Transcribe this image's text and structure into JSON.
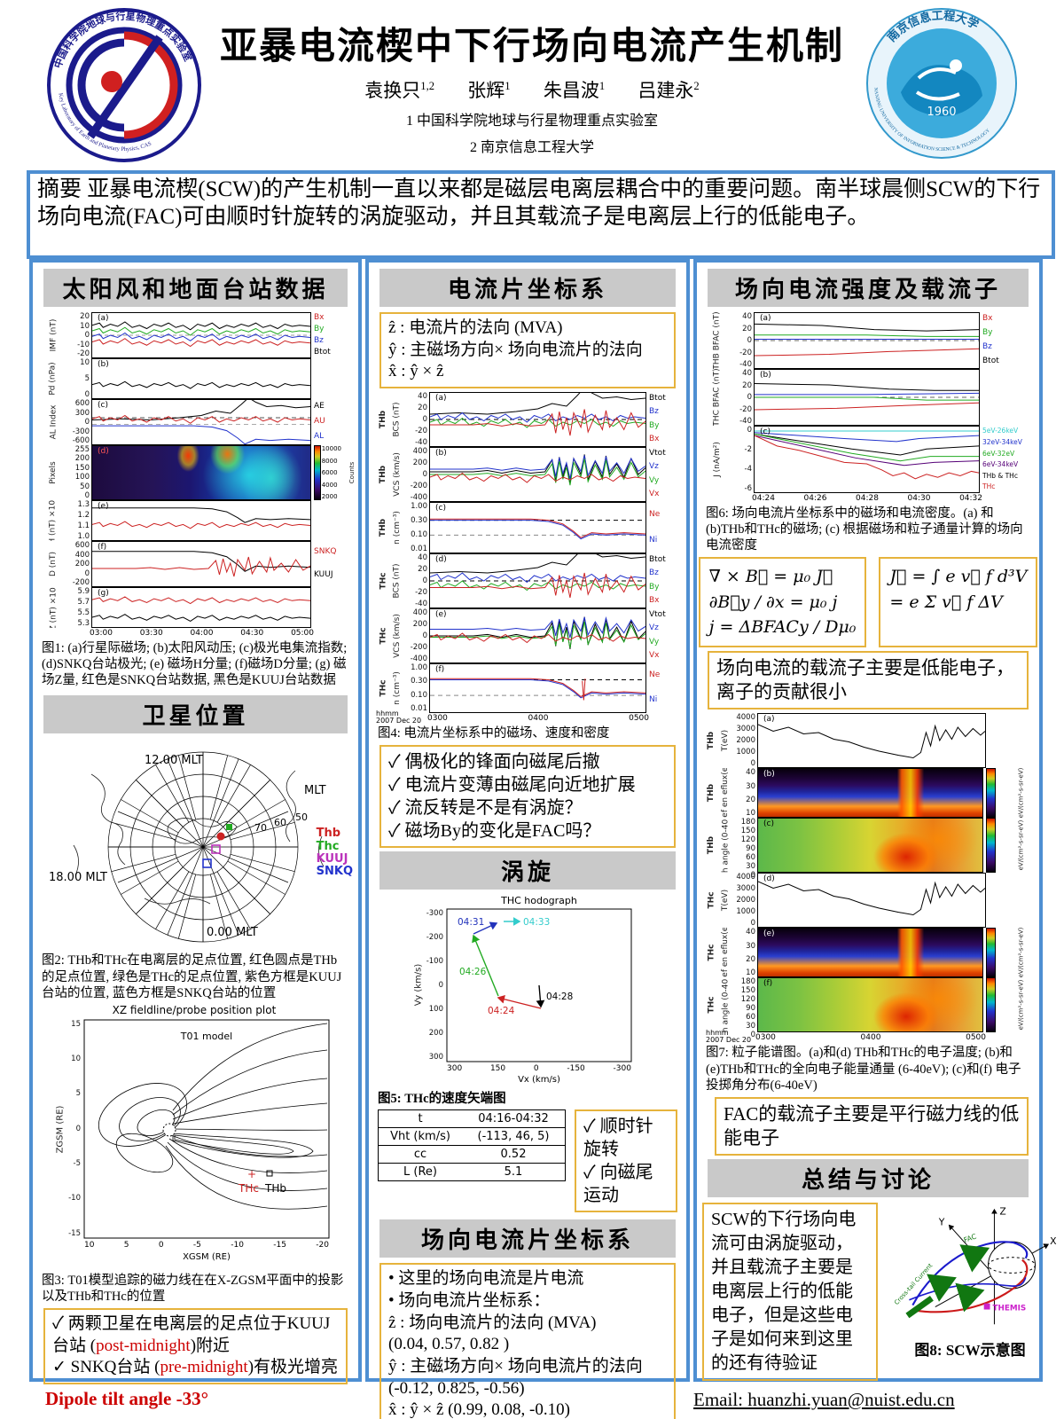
{
  "colors": {
    "accent_blue": "#4e8fd2",
    "header_gray": "#c9c9c9",
    "box_yellow": "#e6b33c",
    "highlight_red": "#cc0000"
  },
  "header": {
    "title": "亚暴电流楔中下行场向电流产生机制",
    "authors": [
      {
        "name": "袁换只",
        "sup": "1,2"
      },
      {
        "name": "张辉",
        "sup": "1"
      },
      {
        "name": "朱昌波",
        "sup": "1"
      },
      {
        "name": "吕建永",
        "sup": "2"
      }
    ],
    "affil1": "1 中国科学院地球与行星物理重点实验室",
    "affil2": "2 南京信息工程大学",
    "logo_left_top": "中国科学院地球与行星物理重点实验室",
    "logo_left_bottom": "Key Laboratory of Earth and Planetary Physics, CAS",
    "logo_right_top": "南京信息工程大学",
    "logo_right_year": "1960",
    "logo_right_bottom": "NANJING UNIVERSITY OF INFORMATION SCIENCE & TECHNOLOGY"
  },
  "abstract": {
    "text": "摘要 亚暴电流楔(SCW)的产生机制一直以来都是磁层电离层耦合中的重要问题。南半球晨侧SCW的下行场向电流(FAC)可由顺时针旋转的涡旋驱动，并且其载流子是电离层上行的低能电子。"
  },
  "left": {
    "sec1": "太阳风和地面台站数据",
    "fig1": {
      "panels": [
        {
          "tag": "(a)",
          "ylabel": "IMF (nT)",
          "yticks": [
            "20",
            "10",
            "0",
            "-10",
            "-20"
          ],
          "legend": [
            {
              "label": "Bx",
              "color": "#cc2222"
            },
            {
              "label": "By",
              "color": "#22aa22"
            },
            {
              "label": "Bz",
              "color": "#2233cc"
            },
            {
              "label": "Btot",
              "color": "#000000"
            }
          ]
        },
        {
          "tag": "(b)",
          "ylabel": "Pd (nPa)",
          "yticks": [
            "10",
            "5",
            "0"
          ],
          "legend": []
        },
        {
          "tag": "(c)",
          "ylabel": "AL Index",
          "yticks": [
            "600",
            "300",
            "0",
            "-300",
            "-600"
          ],
          "legend": [
            {
              "label": "AE",
              "color": "#000000"
            },
            {
              "label": "AU",
              "color": "#cc2222"
            },
            {
              "label": "AL",
              "color": "#2233cc"
            }
          ]
        },
        {
          "tag": "(d)",
          "ylabel": "Pixels",
          "yticks": [
            "255",
            "200",
            "150",
            "100",
            "50",
            "0"
          ],
          "colorbar_ticks": [
            "10000",
            "8000",
            "6000",
            "4000",
            "2000"
          ],
          "colorbar_label": "Counts"
        },
        {
          "tag": "(e)",
          "ylabel": "H (nT) ×10⁴",
          "yticks": [
            "1.3",
            "1.2",
            "1.1",
            "1.0"
          ],
          "legend": []
        },
        {
          "tag": "(f)",
          "ylabel": "D (nT)",
          "yticks": [
            "600",
            "400",
            "200",
            "0",
            "-200"
          ],
          "legend": [
            {
              "label": "SNKQ",
              "color": "#cc2222"
            },
            {
              "label": "KUUJ",
              "color": "#000000"
            }
          ]
        },
        {
          "tag": "(g)",
          "ylabel": "Z (nT) ×10⁴",
          "yticks": [
            "5.9",
            "5.7",
            "5.5",
            "5.3"
          ],
          "legend": []
        }
      ],
      "xticks": [
        "03:00",
        "03:30",
        "04:00",
        "04:30",
        "05:00"
      ],
      "caption": "图1: (a)行星际磁场; (b)太阳风动压; (c)极光电集流指数; (d)SNKQ台站极光; (e) 磁场H分量; (f)磁场D分量; (g) 磁场Z量, 红色是SNKQ台站数据, 黑色是KUUJ台站数据"
    },
    "sec2": "卫星位置",
    "map": {
      "top": "12.00 MLT",
      "right": "MLT",
      "left": "18.00 MLT",
      "bottom": "0.00 MLT",
      "lat": [
        "70",
        "60",
        "50"
      ],
      "legend": [
        {
          "label": "Thb",
          "color": "#cc2222"
        },
        {
          "label": "Thc",
          "color": "#22aa22"
        },
        {
          "label": "KUUJ",
          "color": "#bb33bb"
        },
        {
          "label": "SNKQ",
          "color": "#2233cc"
        }
      ]
    },
    "fig2_caption": "图2: THb和THc在电离层的足点位置, 红色圆点是THb的足点位置, 绿色是THc的足点位置, 紫色方框是KUUJ台站的位置, 蓝色方框是SNKQ台站的位置",
    "fig3": {
      "title": "XZ fieldline/probe position plot",
      "model": "T01 model",
      "ylabel": "ZGSM (RE)",
      "xlabel": "XGSM (RE)",
      "yticks": [
        "15",
        "10",
        "5",
        "0",
        "-5",
        "-10",
        "-15"
      ],
      "xticks": [
        "10",
        "5",
        "0",
        "-5",
        "-10",
        "-15",
        "-20"
      ],
      "thc": "THc",
      "thb": "THb"
    },
    "fig3_caption": "图3: T01模型追踪的磁力线在在X-ZGSM平面中的投影以及THb和THc的位置",
    "findings": [
      {
        "pre": "✓ 两颗卫星在电离层的足点位于KUUJ台站 (",
        "red": "post-midnight",
        "post": ")附近"
      },
      {
        "pre": "✓ SNKQ台站 (",
        "red": "pre-midnight",
        "post": ")有极光增亮"
      }
    ],
    "dipole": "Dipole tilt angle  -33°"
  },
  "middle": {
    "sec1": "电流片坐标系",
    "cs_lines": [
      "ẑ : 电流片的法向 (MVA)",
      "ŷ : 主磁场方向× 场向电流片的法向",
      "x̂ : ŷ × ẑ"
    ],
    "fig4": {
      "panels": [
        {
          "tag": "(a)",
          "sc": "THb",
          "ylabel": "BCS (nT)",
          "yticks": [
            "40",
            "20",
            "0",
            "-20",
            "-40"
          ],
          "legend": [
            {
              "label": "Btot",
              "color": "#000000"
            },
            {
              "label": "Bz",
              "color": "#2233cc"
            },
            {
              "label": "By",
              "color": "#22aa22"
            },
            {
              "label": "Bx",
              "color": "#cc2222"
            }
          ]
        },
        {
          "tag": "(b)",
          "sc": "THb",
          "ylabel": "VCS (km/s)",
          "yticks": [
            "400",
            "200",
            "0",
            "-200",
            "-400"
          ],
          "legend": [
            {
              "label": "Vtot",
              "color": "#000000"
            },
            {
              "label": "Vz",
              "color": "#2233cc"
            },
            {
              "label": "Vy",
              "color": "#22aa22"
            },
            {
              "label": "Vx",
              "color": "#cc2222"
            }
          ]
        },
        {
          "tag": "(c)",
          "sc": "THb",
          "ylabel": "n (cm⁻³)",
          "yticks": [
            "1.00",
            "0.30",
            "0.10",
            "0.01"
          ],
          "legend": [
            {
              "label": "Ne",
              "color": "#cc2222"
            },
            {
              "label": "Ni",
              "color": "#2233cc"
            }
          ]
        },
        {
          "tag": "(d)",
          "sc": "THc",
          "ylabel": "BCS (nT)",
          "yticks": [
            "40",
            "20",
            "0",
            "-20",
            "-40"
          ],
          "legend": [
            {
              "label": "Btot",
              "color": "#000000"
            },
            {
              "label": "Bz",
              "color": "#2233cc"
            },
            {
              "label": "By",
              "color": "#22aa22"
            },
            {
              "label": "Bx",
              "color": "#cc2222"
            }
          ]
        },
        {
          "tag": "(e)",
          "sc": "THc",
          "ylabel": "VCS (km/s)",
          "yticks": [
            "400",
            "200",
            "0",
            "-200",
            "-400"
          ],
          "legend": [
            {
              "label": "Vtot",
              "color": "#000000"
            },
            {
              "label": "Vz",
              "color": "#2233cc"
            },
            {
              "label": "Vy",
              "color": "#22aa22"
            },
            {
              "label": "Vx",
              "color": "#cc2222"
            }
          ]
        },
        {
          "tag": "(f)",
          "sc": "THc",
          "ylabel": "n (cm⁻³)",
          "yticks": [
            "1.00",
            "0.30",
            "0.10",
            "0.01"
          ],
          "legend": [
            {
              "label": "Ne",
              "color": "#cc2222"
            },
            {
              "label": "Ni",
              "color": "#2233cc"
            }
          ]
        }
      ],
      "xticks": [
        "0300",
        "0400",
        "0500"
      ],
      "corner1": "hhmm",
      "corner2": "2007 Dec 20",
      "caption": "图4: 电流片坐标系中的磁场、速度和密度"
    },
    "points": [
      "✓ 偶极化的锋面向磁尾后撤",
      "✓ 电流片变薄由磁尾向近地扩展",
      "✓ 流反转是不是有涡旋？",
      "✓ 磁场By的变化是FAC吗？"
    ],
    "sec2": "涡旋",
    "fig5": {
      "title": "THC hodograph",
      "ylabel": "Vy (km/s)",
      "xlabel": "Vx (km/s)",
      "yticks": [
        "-300",
        "-200",
        "-100",
        "0",
        "100",
        "200",
        "300"
      ],
      "xticks": [
        "300",
        "150",
        "0",
        "-150",
        "-300"
      ],
      "t0431": "04:31",
      "t0433": "04:33",
      "t0426": "04:26",
      "t0424": "04:24",
      "t0428": "04:28"
    },
    "fig5_caption": "图5: THc的速度矢端图",
    "table": [
      [
        "t",
        "04:16-04:32"
      ],
      [
        "Vht (km/s)",
        "(-113, 46, 5)"
      ],
      [
        "cc",
        "0.52"
      ],
      [
        "L (Re)",
        "5.1"
      ]
    ],
    "points2": [
      "✓ 顺时针旋转",
      "✓ 向磁尾运动"
    ],
    "sec3": "场向电流片坐标系",
    "fac_lines": [
      "• 这里的场向电流是片电流",
      "• 场向电流片坐标系：",
      "ẑ : 场向电流片的法向 (MVA)",
      "(0.04, 0.57, 0.82 )",
      "ŷ : 主磁场方向× 场向电流片的法向",
      "(-0.12, 0.825,  -0.56)",
      "x̂ : ŷ × ẑ  (0.99, 0.08, -0.10)"
    ]
  },
  "right": {
    "sec1": "场向电流强度及载流子",
    "fig6": {
      "panels": [
        {
          "tag": "(a)",
          "ylabel": "THB BFAC (nT)",
          "yticks": [
            "40",
            "20",
            "0",
            "-20",
            "-40"
          ],
          "legend": [
            {
              "label": "Bx",
              "color": "#cc2222"
            },
            {
              "label": "By",
              "color": "#22aa22"
            },
            {
              "label": "Bz",
              "color": "#2233cc"
            },
            {
              "label": "Btot",
              "color": "#000000"
            }
          ]
        },
        {
          "tag": "(b)",
          "ylabel": "THC BFAC (nT)",
          "yticks": [
            "40",
            "20",
            "0",
            "-20",
            "-40"
          ],
          "legend": []
        },
        {
          "tag": "(c)",
          "ylabel": "J (nA/m²)",
          "yticks": [
            "0",
            "-2",
            "-4",
            "-6"
          ],
          "legend": [
            {
              "label": "5eV-26keV",
              "color": "#33cccc"
            },
            {
              "label": "32eV-34keV",
              "color": "#2233cc"
            },
            {
              "label": "6eV-32eV",
              "color": "#22aa22"
            },
            {
              "label": "6eV-34keV",
              "color": "#550077"
            },
            {
              "label": "THb & THc",
              "color": "#000000"
            },
            {
              "label": "THc",
              "color": "#cc2222"
            }
          ]
        }
      ],
      "xticks": [
        "04:24",
        "04:26",
        "04:28",
        "04:30",
        "04:32"
      ],
      "caption": "图6: 场向电流片坐标系中的磁场和电流密度。(a) 和(b)THb和THc的磁场; (c) 根据磁场和粒子通量计算的场向电流密度"
    },
    "formula1": [
      "∇ × B⃗ = μ₀ J⃗",
      "∂B⃗y / ∂x = μ₀ j",
      "j = ΔBFACy / Dμ₀"
    ],
    "formula2": [
      "J⃗ = ∫ e v⃗ f d³V",
      "= e Σ v⃗ f ΔV"
    ],
    "note1": "场向电流的载流子主要是低能电子，离子的贡献很小",
    "fig7": {
      "rows": [
        {
          "tag": "(a)",
          "sc": "THb",
          "ylabel": "T(eV)",
          "yticks": [
            "4000",
            "3000",
            "2000",
            "1000",
            "0"
          ],
          "kind": "line"
        },
        {
          "tag": "(b)",
          "sc": "THb",
          "ylabel": "peef en eflux(eV)",
          "yticks": [
            "40",
            "30",
            "20",
            "10"
          ],
          "kind": "spec-e"
        },
        {
          "tag": "(c)",
          "sc": "THb",
          "ylabel": "Pitch angle (0-40 eV)",
          "yticks": [
            "180",
            "150",
            "120",
            "90",
            "60",
            "30",
            "0"
          ],
          "kind": "spec-p"
        },
        {
          "tag": "(d)",
          "sc": "THc",
          "ylabel": "T(eV)",
          "yticks": [
            "4000",
            "3000",
            "2000",
            "1000",
            "0"
          ],
          "kind": "line"
        },
        {
          "tag": "(e)",
          "sc": "THc",
          "ylabel": "peef en eflux(eV)",
          "yticks": [
            "40",
            "30",
            "20",
            "10"
          ],
          "kind": "spec-e"
        },
        {
          "tag": "(f)",
          "sc": "THc",
          "ylabel": "Pitch angle (0-40 eV)",
          "yticks": [
            "180",
            "150",
            "120",
            "90",
            "60",
            "30",
            "0"
          ],
          "kind": "spec-p"
        }
      ],
      "xticks": [
        "0300",
        "0400",
        "0500"
      ],
      "corner1": "hhmm",
      "corner2": "2007 Dec 20",
      "cb_label": "eV/(cm²-s-sr-eV)",
      "caption": "图7: 粒子能谱图。(a)和(d) THb和THc的电子温度; (b)和(e)THb和THc的全向电子能量通量 (6-40eV); (c)和(f) 电子投掷角分布(6-40eV)"
    },
    "note2": "FAC的载流子主要是平行磁力线的低能电子",
    "sec2": "总结与讨论",
    "summary": "SCW的下行场向电流可由涡旋驱动，并且载流子主要是电离层上行的低能电子，但是这些电子是如何来到这里的还有待验证",
    "fig8": {
      "z": "Z",
      "y": "Y",
      "x": "X",
      "fac": "FAC",
      "crosstail": "Cross-tail Current",
      "themis": "THEMIS",
      "caption": "图8: SCW示意图"
    }
  },
  "footer": {
    "email": "Email: huanzhi.yuan@nuist.edu.cn"
  }
}
